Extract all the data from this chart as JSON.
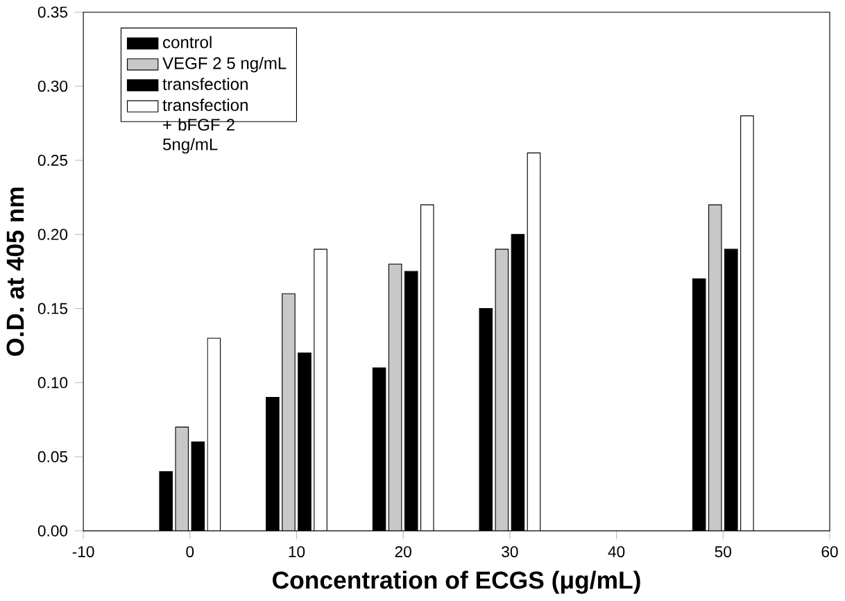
{
  "chart_data": {
    "type": "bar",
    "xlabel": "Concentration of ECGS (μg/mL)",
    "ylabel": "O.D. at 405 nm",
    "x": [
      0,
      10,
      20,
      30,
      50
    ],
    "series": [
      {
        "name": "control",
        "color": "#000000",
        "values": [
          0.04,
          0.09,
          0.11,
          0.15,
          0.17
        ]
      },
      {
        "name": "VEGF 2 5 ng/mL",
        "color": "#c8c8c8",
        "values": [
          0.07,
          0.16,
          0.18,
          0.19,
          0.22
        ]
      },
      {
        "name": "transfection",
        "color": "#000000",
        "values": [
          0.06,
          0.12,
          0.175,
          0.2,
          0.19
        ]
      },
      {
        "name": "transfection + bFGF 2 5ng/mL",
        "color": "#ffffff",
        "values": [
          0.13,
          0.19,
          0.22,
          0.255,
          0.28
        ]
      }
    ],
    "xlim": [
      -10,
      60
    ],
    "xticks": [
      -10,
      0,
      10,
      20,
      30,
      40,
      50,
      60
    ],
    "ylim": [
      0,
      0.35
    ],
    "yticks": [
      {
        "value": 0,
        "label": "0.00"
      },
      {
        "value": 0.05,
        "label": "0.05"
      },
      {
        "value": 0.1,
        "label": "0.10"
      },
      {
        "value": 0.15,
        "label": "0.15"
      },
      {
        "value": 0.2,
        "label": "0.20"
      },
      {
        "value": 0.25,
        "label": "0.25"
      },
      {
        "value": 0.3,
        "label": "0.30"
      },
      {
        "value": 0.35,
        "label": "0.35"
      }
    ],
    "grid": false,
    "legend": "top left"
  }
}
